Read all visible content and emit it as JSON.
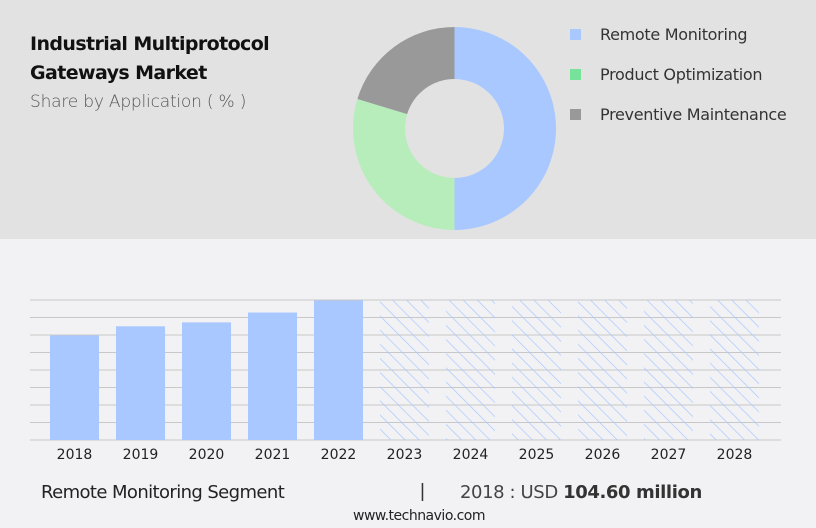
{
  "header": {
    "title_line1": "Industrial Multiprotocol",
    "title_line2": "Gateways Market",
    "subtitle": "Share by Application ( % )"
  },
  "legend": [
    {
      "label": "Remote Monitoring",
      "color": "#a8c8ff"
    },
    {
      "label": "Product Optimization",
      "color": "#77e29a"
    },
    {
      "label": "Preventive Maintenance",
      "color": "#999999"
    }
  ],
  "footer": {
    "segment_label": "Remote Monitoring Segment",
    "separator": "|",
    "value_prefix": "2018 : USD ",
    "value_bold": "104.60 million",
    "url": "www.technavio.com"
  },
  "colors": {
    "top_panel_bg": "#e2e2e2",
    "bottom_panel_bg": "#f2f2f4",
    "bar_color": "#a8c8ff",
    "donut_blue": "#a8c8ff",
    "donut_green": "#b7edbb",
    "donut_grey": "#999999",
    "gridline": "#c8c8c8"
  },
  "chart_data": [
    {
      "type": "pie",
      "variant": "donut",
      "title": "Industrial Multiprotocol Gateways Market",
      "subtitle": "Share by Application ( % )",
      "categories": [
        "Remote Monitoring",
        "Product Optimization",
        "Preventive Maintenance"
      ],
      "values": [
        50.0,
        29.7,
        20.3
      ],
      "colors": [
        "#a8c8ff",
        "#b7edbb",
        "#999999"
      ],
      "start_angle": "12 o'clock, clockwise",
      "legend_position": "right"
    },
    {
      "type": "bar",
      "title": "Remote Monitoring Segment",
      "categories": [
        "2018",
        "2019",
        "2020",
        "2021",
        "2022",
        "2023",
        "2024",
        "2025",
        "2026",
        "2027",
        "2028"
      ],
      "values": [
        104.6,
        113.7,
        117.6,
        127.5,
        139.5,
        null,
        null,
        null,
        null,
        null,
        null
      ],
      "forecast_years": [
        "2023",
        "2024",
        "2025",
        "2026",
        "2027",
        "2028"
      ],
      "forecast_style": "hatched, full height placeholders",
      "annotation": "2018 : USD 104.60 million",
      "xlabel": "",
      "ylabel": "",
      "unit": "USD million",
      "ylim": [
        0,
        140
      ],
      "grid": true,
      "gridlines": 8,
      "y_tick_labels": false
    }
  ]
}
